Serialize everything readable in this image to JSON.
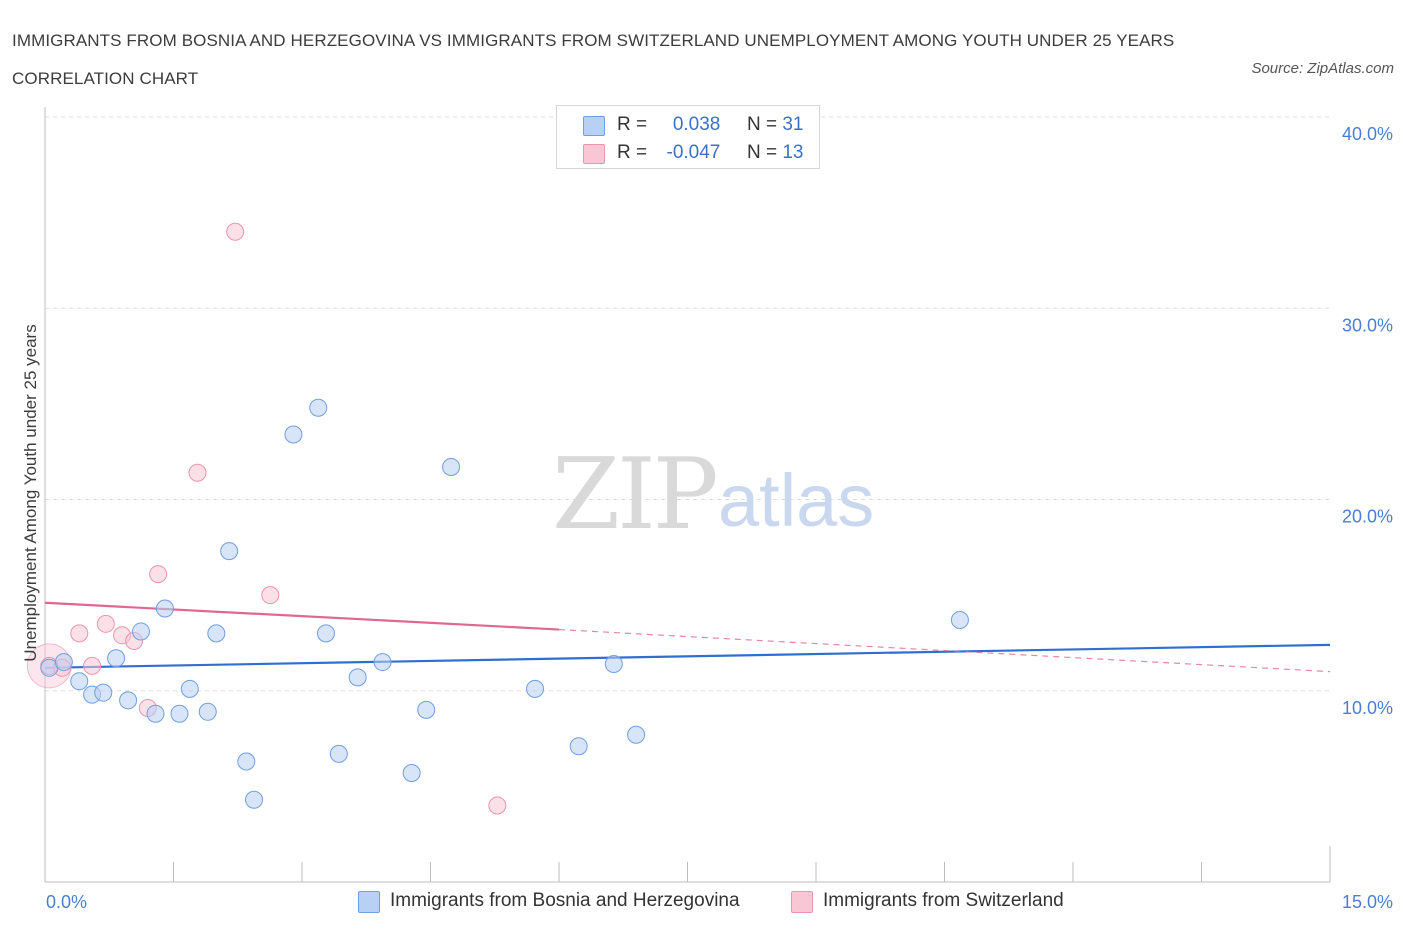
{
  "header": {
    "title": "IMMIGRANTS FROM BOSNIA AND HERZEGOVINA VS IMMIGRANTS FROM SWITZERLAND UNEMPLOYMENT AMONG YOUTH UNDER 25 YEARS CORRELATION CHART",
    "source": "Source: ZipAtlas.com"
  },
  "legend": {
    "series1": {
      "r_label": "R = ",
      "r_value": "0.038",
      "n_label": "N = ",
      "n_value": "31"
    },
    "series2": {
      "r_label": "R = ",
      "r_value": "-0.047",
      "n_label": "N = ",
      "n_value": "13"
    }
  },
  "watermark": {
    "zip": "ZIP",
    "atlas": "atlas"
  },
  "colors": {
    "blue_fill": "#b8d0f3",
    "blue_stroke": "#6f9fe0",
    "blue_line": "#2f6fcf",
    "pink_fill": "#f8c6d4",
    "pink_stroke": "#ee94ae",
    "pink_line": "#e0688f",
    "grid": "#dcdcdc",
    "tick_text": "#4a7fd0"
  },
  "chart_data": {
    "type": "scatter",
    "title": "IMMIGRANTS FROM BOSNIA AND HERZEGOVINA VS IMMIGRANTS FROM SWITZERLAND UNEMPLOYMENT AMONG YOUTH UNDER 25 YEARS CORRELATION CHART",
    "xlabel": "",
    "ylabel": "Unemployment Among Youth under 25 years",
    "xlim": [
      0,
      15
    ],
    "ylim": [
      0,
      40
    ],
    "x_tick_labels": [
      "0.0%",
      "15.0%"
    ],
    "y_ticks": [
      10,
      20,
      30,
      40
    ],
    "y_tick_labels": [
      "10.0%",
      "20.0%",
      "30.0%",
      "40.0%"
    ],
    "grid": true,
    "series": [
      {
        "name": "Immigrants from Bosnia and Herzegovina",
        "color": "blue",
        "r": 0.038,
        "n": 31,
        "points": [
          {
            "x": 0.05,
            "y": 11.2
          },
          {
            "x": 0.22,
            "y": 11.5
          },
          {
            "x": 0.4,
            "y": 10.5
          },
          {
            "x": 0.55,
            "y": 9.8
          },
          {
            "x": 0.68,
            "y": 9.9
          },
          {
            "x": 0.83,
            "y": 11.7
          },
          {
            "x": 0.97,
            "y": 9.5
          },
          {
            "x": 1.12,
            "y": 13.1
          },
          {
            "x": 1.29,
            "y": 8.8
          },
          {
            "x": 1.4,
            "y": 14.3
          },
          {
            "x": 1.57,
            "y": 8.8
          },
          {
            "x": 1.69,
            "y": 10.1
          },
          {
            "x": 1.9,
            "y": 8.9
          },
          {
            "x": 2.0,
            "y": 13.0
          },
          {
            "x": 2.15,
            "y": 17.3
          },
          {
            "x": 2.35,
            "y": 6.3
          },
          {
            "x": 2.44,
            "y": 4.3
          },
          {
            "x": 2.9,
            "y": 23.4
          },
          {
            "x": 3.19,
            "y": 24.8
          },
          {
            "x": 3.28,
            "y": 13.0
          },
          {
            "x": 3.43,
            "y": 6.7
          },
          {
            "x": 3.65,
            "y": 10.7
          },
          {
            "x": 3.94,
            "y": 11.5
          },
          {
            "x": 4.28,
            "y": 5.7
          },
          {
            "x": 4.45,
            "y": 9.0
          },
          {
            "x": 4.74,
            "y": 21.7
          },
          {
            "x": 5.72,
            "y": 10.1
          },
          {
            "x": 6.23,
            "y": 7.1
          },
          {
            "x": 6.64,
            "y": 11.4
          },
          {
            "x": 6.9,
            "y": 7.7
          },
          {
            "x": 10.68,
            "y": 13.7
          }
        ],
        "trend": {
          "x0": 0,
          "y0": 11.2,
          "x1": 15,
          "y1": 12.4
        }
      },
      {
        "name": "Immigrants from Switzerland",
        "color": "pink",
        "r": -0.047,
        "n": 13,
        "points": [
          {
            "x": 0.05,
            "y": 11.3
          },
          {
            "x": 0.2,
            "y": 11.2
          },
          {
            "x": 0.4,
            "y": 13.0
          },
          {
            "x": 0.55,
            "y": 11.3
          },
          {
            "x": 0.71,
            "y": 13.5
          },
          {
            "x": 0.9,
            "y": 12.9
          },
          {
            "x": 1.04,
            "y": 12.6
          },
          {
            "x": 1.2,
            "y": 9.1
          },
          {
            "x": 1.32,
            "y": 16.1
          },
          {
            "x": 1.78,
            "y": 21.4
          },
          {
            "x": 2.22,
            "y": 34.0
          },
          {
            "x": 2.63,
            "y": 15.0
          },
          {
            "x": 5.28,
            "y": 4.0
          }
        ],
        "trend_solid": {
          "x0": 0,
          "y0": 14.6,
          "x1": 6.0,
          "y1": 13.2
        },
        "trend_dashed": {
          "x0": 6.0,
          "y0": 13.2,
          "x1": 15,
          "y1": 11.0
        }
      }
    ]
  },
  "bottom_legend": {
    "series1_label": "Immigrants from Bosnia and Herzegovina",
    "series2_label": "Immigrants from Switzerland"
  }
}
